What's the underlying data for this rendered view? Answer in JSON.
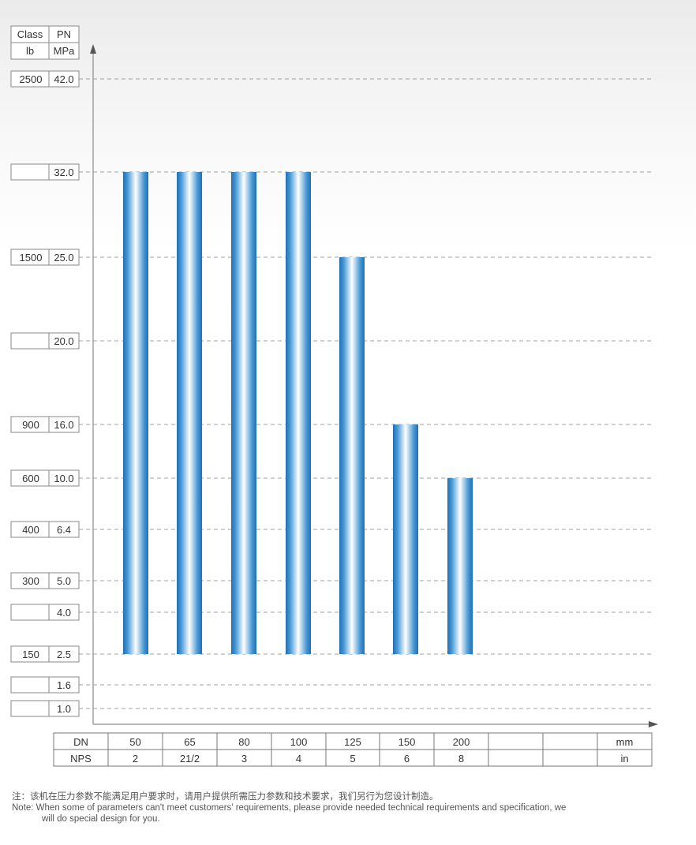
{
  "header_table": {
    "row1": [
      "Class",
      "PN"
    ],
    "row2": [
      "lb",
      "MPa"
    ]
  },
  "y_levels": [
    {
      "class": "2500",
      "pn": "42.0"
    },
    {
      "class": "",
      "pn": "32.0"
    },
    {
      "class": "1500",
      "pn": "25.0"
    },
    {
      "class": "",
      "pn": "20.0"
    },
    {
      "class": "900",
      "pn": "16.0"
    },
    {
      "class": "600",
      "pn": "10.0"
    },
    {
      "class": "400",
      "pn": "6.4"
    },
    {
      "class": "300",
      "pn": "5.0"
    },
    {
      "class": "",
      "pn": "4.0"
    },
    {
      "class": "150",
      "pn": "2.5"
    },
    {
      "class": "",
      "pn": "1.6"
    },
    {
      "class": "",
      "pn": "1.0"
    }
  ],
  "x_table": {
    "row1_label": "DN",
    "row2_label": "NPS",
    "dn": [
      "50",
      "65",
      "80",
      "100",
      "125",
      "150",
      "200",
      "",
      ""
    ],
    "nps": [
      "2",
      "21/2",
      "3",
      "4",
      "5",
      "6",
      "8",
      "",
      ""
    ],
    "unit1": "mm",
    "unit2": "in"
  },
  "chart_data": {
    "type": "bar",
    "categories": [
      "50",
      "65",
      "80",
      "100",
      "125",
      "150",
      "200"
    ],
    "nps": [
      "2",
      "21/2",
      "3",
      "4",
      "5",
      "6",
      "8"
    ],
    "y_scale": "categorical pressure levels",
    "y_levels_pn": [
      "1.0",
      "1.6",
      "2.5",
      "4.0",
      "5.0",
      "6.4",
      "10.0",
      "16.0",
      "20.0",
      "25.0",
      "32.0",
      "42.0"
    ],
    "bars": [
      {
        "dn": "50",
        "from_pn": "2.5",
        "to_pn": "32.0"
      },
      {
        "dn": "65",
        "from_pn": "2.5",
        "to_pn": "32.0"
      },
      {
        "dn": "80",
        "from_pn": "2.5",
        "to_pn": "32.0"
      },
      {
        "dn": "100",
        "from_pn": "2.5",
        "to_pn": "32.0"
      },
      {
        "dn": "125",
        "from_pn": "2.5",
        "to_pn": "25.0"
      },
      {
        "dn": "150",
        "from_pn": "2.5",
        "to_pn": "16.0"
      },
      {
        "dn": "200",
        "from_pn": "2.5",
        "to_pn": "10.0"
      }
    ],
    "grid": true,
    "colors": {
      "bar_edge": "#2a7ec4",
      "bar_center": "#ffffff",
      "grid": "#a0a0a0",
      "axis": "#8a8a8a"
    }
  },
  "note": {
    "cn": "注：该机在压力参数不能满足用户要求时，请用户提供所需压力参数和技术要求，我们另行为您设计制造。",
    "en_1": "Note: When some of parameters can't meet customers' requirements, please provide needed technical requirements and specification, we",
    "en_2": "will do special design for you."
  }
}
